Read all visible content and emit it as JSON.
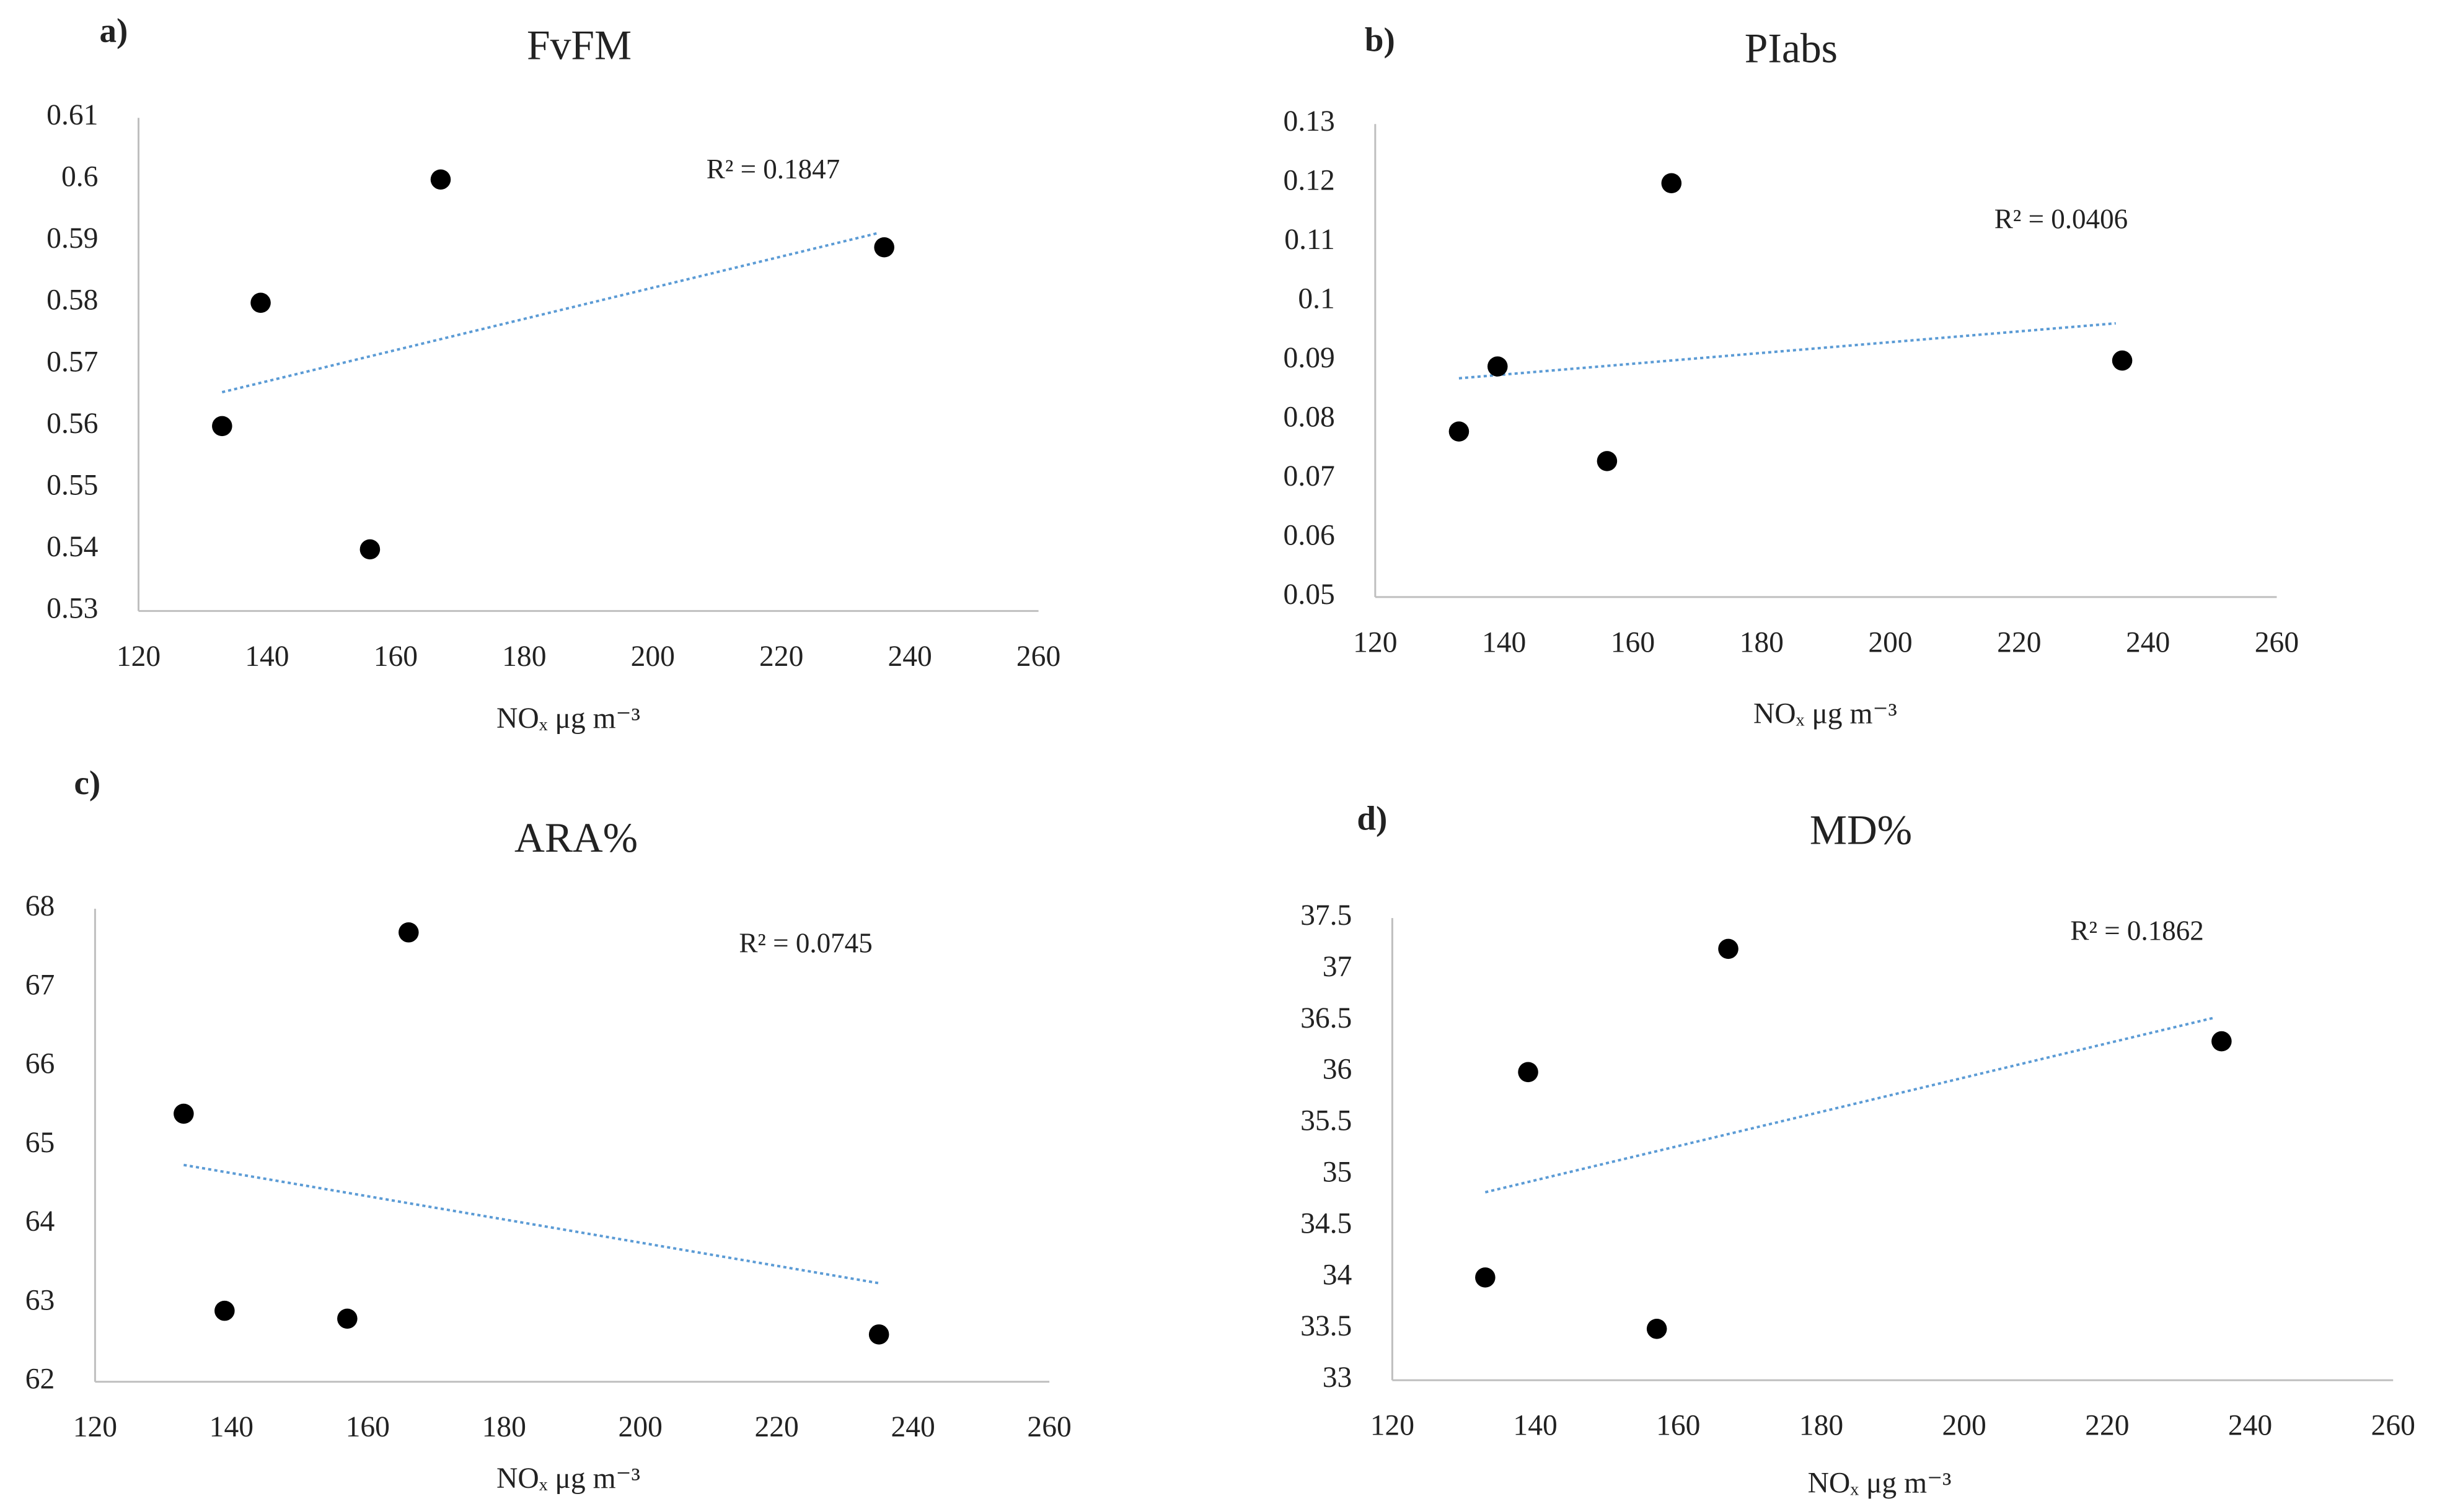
{
  "chart_data": [
    {
      "type": "scatter",
      "label": "a)",
      "title": "FvFM",
      "x_label": "NOₓ μg m⁻³",
      "annotation": "R² = 0.1847",
      "x": [
        133,
        139,
        156,
        167,
        236
      ],
      "series": [
        {
          "color": "#000000",
          "values": [
            0.56,
            0.58,
            0.54,
            0.6,
            0.589
          ]
        }
      ],
      "trendline": {
        "color": "#5b9bd5",
        "x": [
          133,
          235
        ],
        "y": [
          0.5655,
          0.5913
        ]
      },
      "xlim": [
        120,
        260
      ],
      "xticks": [
        120,
        140,
        160,
        180,
        200,
        220,
        240,
        260
      ],
      "ylim": [
        0.53,
        0.61
      ],
      "yticks": [
        0.53,
        0.54,
        0.55,
        0.56,
        0.57,
        0.58,
        0.59,
        0.6,
        0.61
      ]
    },
    {
      "type": "scatter",
      "label": "b)",
      "title": "PIabs",
      "x_label": "NOₓ μg m⁻³",
      "annotation": "R² = 0.0406",
      "x": [
        133,
        139,
        156,
        166,
        236
      ],
      "series": [
        {
          "color": "#000000",
          "values": [
            0.078,
            0.089,
            0.073,
            0.12,
            0.09
          ]
        }
      ],
      "trendline": {
        "color": "#5b9bd5",
        "x": [
          133,
          235
        ],
        "y": [
          0.087,
          0.0963
        ]
      },
      "xlim": [
        120,
        260
      ],
      "xticks": [
        120,
        140,
        160,
        180,
        200,
        220,
        240,
        260
      ],
      "ylim": [
        0.05,
        0.13
      ],
      "yticks": [
        0.05,
        0.06,
        0.07,
        0.08,
        0.09,
        0.1,
        0.11,
        0.12,
        0.13
      ]
    },
    {
      "type": "scatter",
      "label": "c)",
      "title": "ARA%",
      "x_label": "NOₓ μg m⁻³",
      "annotation": "R² = 0.0745",
      "x": [
        133,
        139,
        157,
        166,
        235
      ],
      "series": [
        {
          "color": "#000000",
          "values": [
            65.4,
            62.9,
            62.8,
            67.7,
            62.6
          ]
        }
      ],
      "trendline": {
        "color": "#5b9bd5",
        "x": [
          133,
          235
        ],
        "y": [
          64.75,
          63.25
        ]
      },
      "xlim": [
        120,
        260
      ],
      "xticks": [
        120,
        140,
        160,
        180,
        200,
        220,
        240,
        260
      ],
      "ylim": [
        62,
        68
      ],
      "yticks": [
        62,
        63,
        64,
        65,
        66,
        67,
        68
      ]
    },
    {
      "type": "scatter",
      "label": "d)",
      "title": "MD%",
      "x_label": "NOₓ μg m⁻³",
      "annotation": "R² = 0.1862",
      "x": [
        133,
        139,
        157,
        167,
        236
      ],
      "series": [
        {
          "color": "#000000",
          "values": [
            34,
            36,
            33.5,
            37.2,
            36.3
          ]
        }
      ],
      "trendline": {
        "color": "#5b9bd5",
        "x": [
          133,
          235
        ],
        "y": [
          34.83,
          36.53
        ]
      },
      "xlim": [
        120,
        260
      ],
      "xticks": [
        120,
        140,
        160,
        180,
        200,
        220,
        240,
        260
      ],
      "ylim": [
        33,
        37.5
      ],
      "yticks": [
        33,
        33.5,
        34,
        34.5,
        35,
        35.5,
        36,
        36.5,
        37,
        37.5
      ]
    }
  ]
}
